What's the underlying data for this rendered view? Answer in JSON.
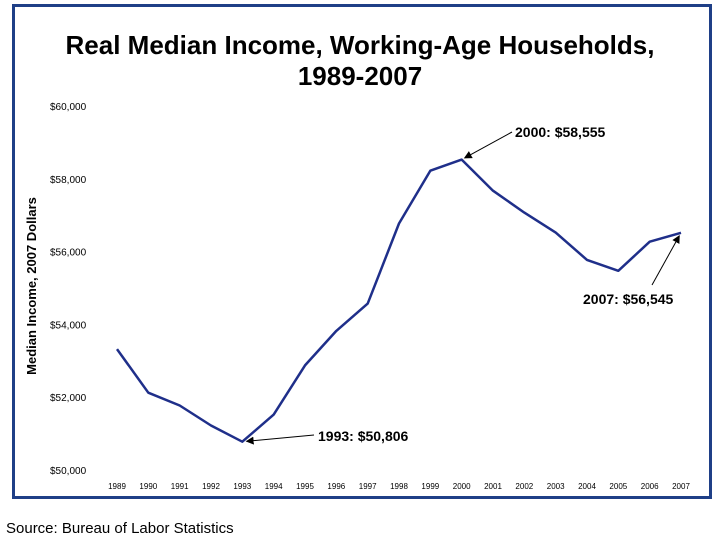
{
  "title_line1": "Real Median Income, Working-Age Households,",
  "title_line2": "1989-2007",
  "source": "Source: Bureau of Labor Statistics",
  "colors": {
    "line": "#1f2f8a",
    "frame": "#1f3f87"
  },
  "chart_data": {
    "type": "line",
    "title": "Real Median Income, Working-Age Households, 1989-2007",
    "xlabel": "",
    "ylabel": "Median Income, 2007 Dollars",
    "ylim": [
      50000,
      60000
    ],
    "grid": false,
    "y_ticks": [
      "$50,000",
      "$52,000",
      "$54,000",
      "$56,000",
      "$58,000",
      "$60,000"
    ],
    "categories": [
      "1989",
      "1990",
      "1991",
      "1992",
      "1993",
      "1994",
      "1995",
      "1996",
      "1997",
      "1998",
      "1999",
      "2000",
      "2001",
      "2002",
      "2003",
      "2004",
      "2005",
      "2006",
      "2007"
    ],
    "series": [
      {
        "values": [
          53350,
          52150,
          51800,
          51250,
          50806,
          51550,
          52900,
          53850,
          54600,
          56800,
          58250,
          58555,
          57700,
          57100,
          56550,
          55800,
          55500,
          56300,
          56545
        ]
      }
    ],
    "annotations": [
      {
        "text": "2000: $58,555",
        "category": "2000",
        "value": 58555
      },
      {
        "text": "1993: $50,806",
        "category": "1993",
        "value": 50806
      },
      {
        "text": "2007: $56,545",
        "category": "2007",
        "value": 56545
      }
    ]
  }
}
